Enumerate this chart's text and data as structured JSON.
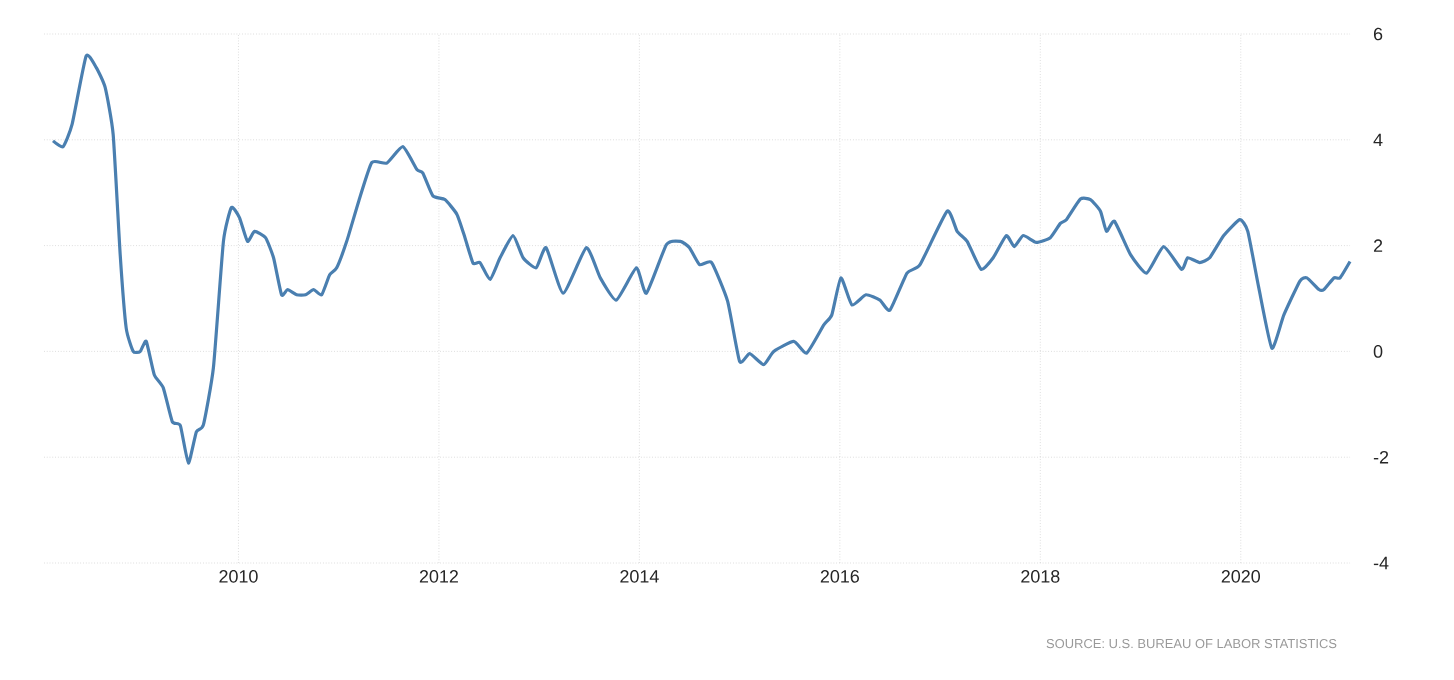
{
  "chart_data": {
    "type": "line",
    "color": "#4a7fb0",
    "x": [
      2008.15,
      2008.25,
      2008.34,
      2008.48,
      2008.58,
      2008.67,
      2008.75,
      2008.82,
      2008.88,
      2008.95,
      2009.02,
      2009.08,
      2009.16,
      2009.25,
      2009.34,
      2009.42,
      2009.5,
      2009.58,
      2009.65,
      2009.75,
      2009.85,
      2009.93,
      2010.01,
      2010.09,
      2010.16,
      2010.27,
      2010.35,
      2010.43,
      2010.49,
      2010.58,
      2010.67,
      2010.75,
      2010.83,
      2010.91,
      2010.98,
      2011.08,
      2011.2,
      2011.33,
      2011.48,
      2011.64,
      2011.78,
      2011.84,
      2011.94,
      2012.06,
      2012.18,
      2012.26,
      2012.34,
      2012.41,
      2012.51,
      2012.61,
      2012.74,
      2012.84,
      2012.97,
      2013.07,
      2013.24,
      2013.47,
      2013.61,
      2013.77,
      2013.97,
      2014.07,
      2014.27,
      2014.41,
      2014.5,
      2014.6,
      2014.72,
      2014.88,
      2015.0,
      2015.1,
      2015.24,
      2015.34,
      2015.54,
      2015.67,
      2015.84,
      2015.92,
      2016.01,
      2016.12,
      2016.26,
      2016.4,
      2016.5,
      2016.67,
      2016.8,
      2017.07,
      2017.17,
      2017.27,
      2017.41,
      2017.53,
      2017.66,
      2017.74,
      2017.83,
      2017.96,
      2018.1,
      2018.2,
      2018.26,
      2018.4,
      2018.5,
      2018.6,
      2018.66,
      2018.74,
      2018.9,
      2019.06,
      2019.23,
      2019.41,
      2019.47,
      2019.59,
      2019.69,
      2019.83,
      2019.99,
      2020.07,
      2020.18,
      2020.31,
      2020.43,
      2020.59,
      2020.66,
      2020.78,
      2020.83,
      2020.93,
      2020.99,
      2021.09
    ],
    "values": [
      3.98,
      3.87,
      4.29,
      5.58,
      5.37,
      4.99,
      4.1,
      1.83,
      0.44,
      0.0,
      0.0,
      0.19,
      -0.44,
      -0.69,
      -1.33,
      -1.4,
      -2.11,
      -1.52,
      -1.39,
      -0.31,
      2.08,
      2.72,
      2.53,
      2.08,
      2.27,
      2.15,
      1.77,
      1.07,
      1.17,
      1.07,
      1.07,
      1.17,
      1.07,
      1.45,
      1.58,
      2.08,
      2.84,
      3.57,
      3.56,
      3.87,
      3.44,
      3.37,
      2.94,
      2.87,
      2.59,
      2.15,
      1.67,
      1.68,
      1.36,
      1.77,
      2.19,
      1.77,
      1.58,
      1.96,
      1.1,
      1.96,
      1.39,
      0.97,
      1.58,
      1.1,
      2.02,
      2.08,
      1.96,
      1.64,
      1.68,
      0.95,
      -0.19,
      -0.04,
      -0.25,
      0.0,
      0.19,
      -0.03,
      0.5,
      0.69,
      1.39,
      0.88,
      1.07,
      0.97,
      0.78,
      1.48,
      1.64,
      2.65,
      2.27,
      2.08,
      1.55,
      1.77,
      2.19,
      1.98,
      2.19,
      2.06,
      2.15,
      2.42,
      2.49,
      2.88,
      2.87,
      2.65,
      2.27,
      2.46,
      1.83,
      1.48,
      1.98,
      1.55,
      1.77,
      1.68,
      1.77,
      2.19,
      2.49,
      2.27,
      1.2,
      0.06,
      0.69,
      1.33,
      1.39,
      1.17,
      1.17,
      1.39,
      1.39,
      1.7
    ],
    "xlim": [
      2008.06,
      2021.09
    ],
    "ylim": [
      -4,
      6
    ],
    "xticks": [
      2010,
      2012,
      2014,
      2016,
      2018,
      2020
    ],
    "yticks": [
      -4,
      -2,
      0,
      2,
      4,
      6
    ],
    "grid": true,
    "line_style": "solid",
    "annotations": [
      "SOURCE: U.S. BUREAU OF LABOR STATISTICS"
    ]
  }
}
